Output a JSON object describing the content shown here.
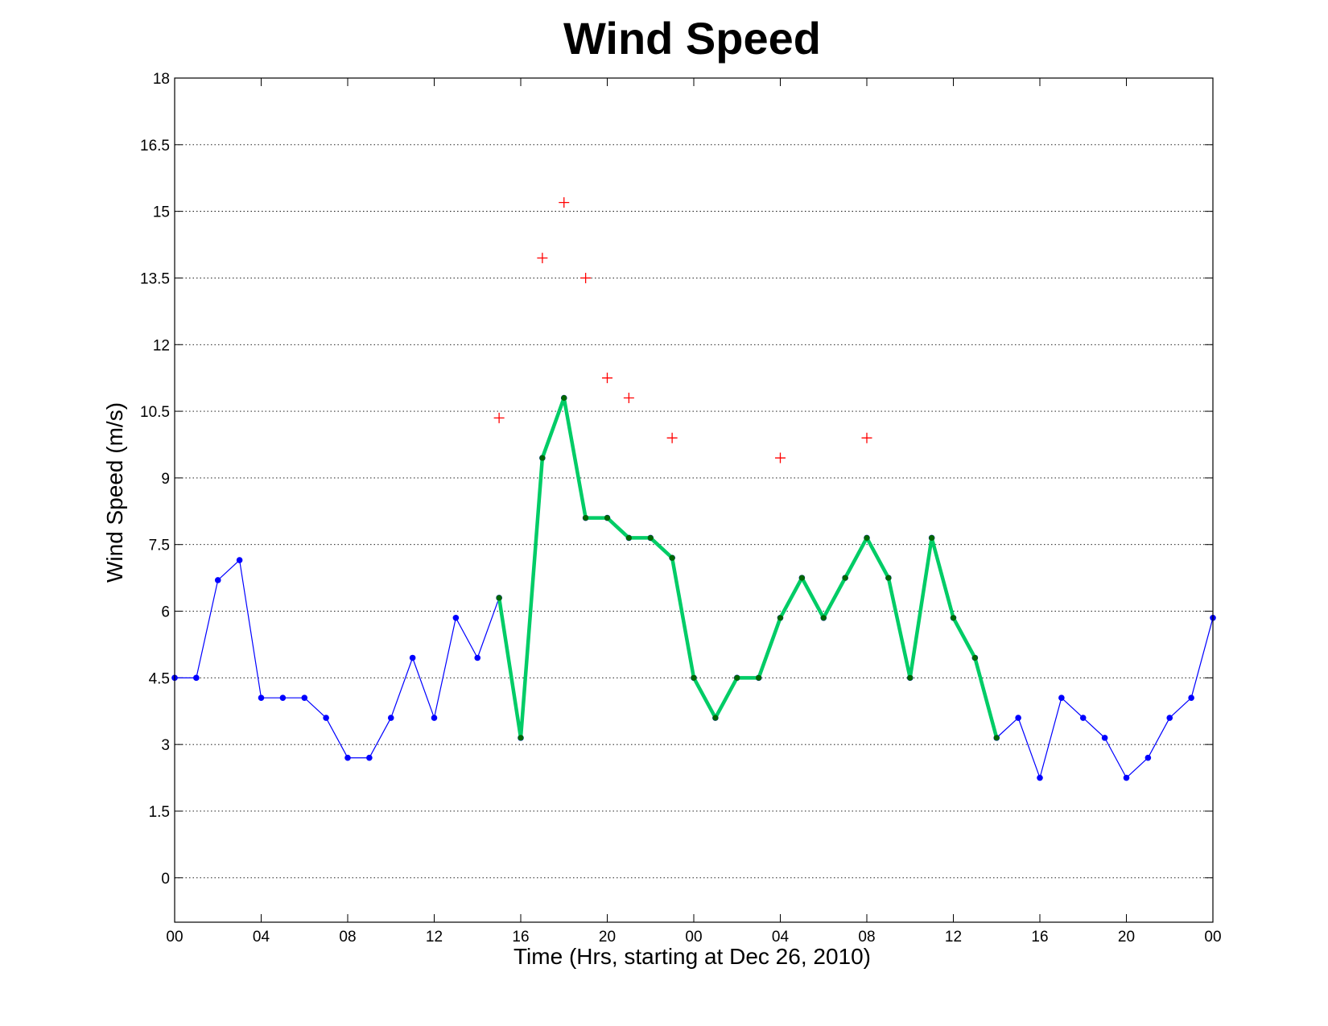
{
  "chart_data": {
    "type": "line",
    "title": "Wind Speed",
    "xlabel": "Time (Hrs, starting at Dec 26, 2010)",
    "ylabel": "Wind Speed (m/s)",
    "xlim": [
      0,
      48
    ],
    "ylim": [
      -1,
      18
    ],
    "grid": "y-dotted",
    "x_tick_values": [
      0,
      4,
      8,
      12,
      16,
      20,
      24,
      28,
      32,
      36,
      40,
      44,
      48
    ],
    "x_tick_labels": [
      "00",
      "04",
      "08",
      "12",
      "16",
      "20",
      "00",
      "04",
      "08",
      "12",
      "16",
      "20",
      "00"
    ],
    "y_tick_values": [
      0,
      1.5,
      3,
      4.5,
      6,
      7.5,
      9,
      10.5,
      12,
      13.5,
      15,
      16.5,
      18
    ],
    "y_tick_labels": [
      "0",
      "1.5",
      "3",
      "4.5",
      "6",
      "7.5",
      "9",
      "10.5",
      "12",
      "13.5",
      "15",
      "16.5",
      "18"
    ],
    "series": [
      {
        "style": "thin-line-dots",
        "color": "#0000ff",
        "x": [
          0,
          1,
          2,
          3,
          4,
          5,
          6,
          7,
          8,
          9,
          10,
          11,
          12,
          13,
          14,
          15,
          16,
          17,
          18,
          19,
          20,
          21,
          22,
          23,
          24,
          25,
          26,
          27,
          28,
          29,
          30,
          31,
          32,
          33,
          34,
          35,
          36,
          37,
          38,
          39,
          40,
          41,
          42,
          43,
          44,
          45,
          46,
          47,
          48
        ],
        "y": [
          4.5,
          4.5,
          6.7,
          7.15,
          4.05,
          4.05,
          4.05,
          3.6,
          2.7,
          2.7,
          3.6,
          4.95,
          3.6,
          5.85,
          4.95,
          6.3,
          3.15,
          9.45,
          10.8,
          8.1,
          8.1,
          7.65,
          7.65,
          7.2,
          4.5,
          3.6,
          4.5,
          4.5,
          5.85,
          6.75,
          5.85,
          6.75,
          7.65,
          6.75,
          4.5,
          7.65,
          5.85,
          4.95,
          3.15,
          3.6,
          2.25,
          4.05,
          3.6,
          3.15,
          2.25,
          2.7,
          3.6,
          4.05,
          5.85
        ]
      },
      {
        "style": "thick-line-dots",
        "color": "#00cc66",
        "marker_color": "#006600",
        "x": [
          15,
          16,
          17,
          18,
          19,
          20,
          21,
          22,
          23,
          24,
          25,
          26,
          27,
          28,
          29,
          30,
          31,
          32,
          33,
          34,
          35,
          36,
          37,
          38
        ],
        "y": [
          6.3,
          3.15,
          9.45,
          10.8,
          8.1,
          8.1,
          7.65,
          7.65,
          7.2,
          4.5,
          3.6,
          4.5,
          4.5,
          5.85,
          6.75,
          5.85,
          6.75,
          7.65,
          6.75,
          4.5,
          7.65,
          5.85,
          4.95,
          3.15
        ]
      },
      {
        "style": "plus-markers",
        "color": "#ff0000",
        "x": [
          15,
          17,
          18,
          19,
          20,
          21,
          23,
          28,
          32
        ],
        "y": [
          10.35,
          13.95,
          15.2,
          13.5,
          11.25,
          10.8,
          9.9,
          9.45,
          9.9
        ]
      }
    ]
  }
}
